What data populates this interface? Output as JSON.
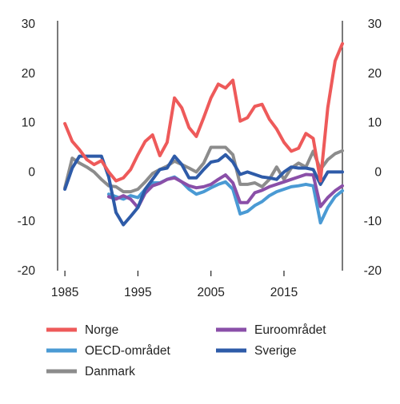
{
  "chart_data": {
    "type": "line",
    "title": "",
    "xlabel": "",
    "ylabel": "",
    "xlim": [
      1984,
      2023
    ],
    "ylim": [
      -20,
      30
    ],
    "y_ticks": [
      30,
      20,
      10,
      0,
      -10,
      -20
    ],
    "y_tick_labels": [
      "30",
      "20",
      "10",
      "0",
      "-10",
      "-20"
    ],
    "x_ticks": [
      1985,
      1995,
      2005,
      2015
    ],
    "x_tick_labels": [
      "1985",
      "1995",
      "2005",
      "2015"
    ],
    "secondary_y_axis": true,
    "grid": false,
    "legend_position": "bottom",
    "series": [
      {
        "name": "Norge",
        "color": "#ee5a5a",
        "x": [
          1985,
          1986,
          1987,
          1988,
          1989,
          1990,
          1991,
          1992,
          1993,
          1994,
          1995,
          1996,
          1997,
          1998,
          1999,
          2000,
          2001,
          2002,
          2003,
          2004,
          2005,
          2006,
          2007,
          2008,
          2009,
          2010,
          2011,
          2012,
          2013,
          2014,
          2015,
          2016,
          2017,
          2018,
          2019,
          2020,
          2021,
          2022,
          2023
        ],
        "y": [
          9.8,
          6.2,
          4.5,
          2.5,
          1.5,
          2.3,
          0,
          -1.8,
          -1.2,
          0.5,
          3.5,
          6.2,
          7.5,
          3.3,
          6,
          15,
          13,
          9,
          7.2,
          11,
          15,
          17.8,
          17,
          18.6,
          10.3,
          11,
          13.3,
          13.7,
          10.7,
          8.7,
          6,
          4.2,
          4.8,
          7.8,
          6.8,
          -1.8,
          13,
          22.5,
          26
        ]
      },
      {
        "name": "OECD-området",
        "color": "#4a9ad4",
        "x": [
          1991,
          1992,
          1993,
          1994,
          1995,
          1996,
          1997,
          1998,
          1999,
          2000,
          2001,
          2002,
          2003,
          2004,
          2005,
          2006,
          2007,
          2008,
          2009,
          2010,
          2011,
          2012,
          2013,
          2014,
          2015,
          2016,
          2017,
          2018,
          2019,
          2020,
          2021,
          2022,
          2023
        ],
        "y": [
          -4.5,
          -5,
          -5.5,
          -4.8,
          -5.2,
          -3.5,
          -2.2,
          -2.2,
          -1.5,
          -1,
          -2,
          -3.5,
          -4.5,
          -4,
          -3.2,
          -2.5,
          -2,
          -3.5,
          -8.5,
          -8,
          -6.8,
          -6,
          -4.8,
          -4,
          -3.5,
          -3,
          -2.8,
          -2.5,
          -2.8,
          -10.3,
          -7.2,
          -5,
          -3.8
        ]
      },
      {
        "name": "Danmark",
        "color": "#8c8c8c",
        "x": [
          1985,
          1986,
          1987,
          1988,
          1989,
          1990,
          1991,
          1992,
          1993,
          1994,
          1995,
          1996,
          1997,
          1998,
          1999,
          2000,
          2001,
          2002,
          2003,
          2004,
          2005,
          2006,
          2007,
          2008,
          2009,
          2010,
          2011,
          2012,
          2013,
          2014,
          2015,
          2016,
          2017,
          2018,
          2019,
          2020,
          2021,
          2022,
          2023
        ],
        "y": [
          -3.2,
          2.8,
          1.8,
          1,
          0,
          -1.5,
          -2.8,
          -3,
          -4,
          -4,
          -3.5,
          -2,
          -0.3,
          0.5,
          1.2,
          2.2,
          1.5,
          0.8,
          0,
          1.8,
          5,
          5,
          5,
          3.5,
          -2.5,
          -2.5,
          -2.2,
          -3,
          -1.5,
          1,
          -1.5,
          0.8,
          1.8,
          1,
          4.2,
          0.5,
          2.5,
          3.7,
          4.3
        ]
      },
      {
        "name": "Euroområdet",
        "color": "#8a4fa8",
        "x": [
          1991,
          1992,
          1993,
          1994,
          1995,
          1996,
          1997,
          1998,
          1999,
          2000,
          2001,
          2002,
          2003,
          2004,
          2005,
          2006,
          2007,
          2008,
          2009,
          2010,
          2011,
          2012,
          2013,
          2014,
          2015,
          2016,
          2017,
          2018,
          2019,
          2020,
          2021,
          2022,
          2023
        ],
        "y": [
          -5,
          -5.5,
          -4.8,
          -5.5,
          -7.2,
          -4.3,
          -2.8,
          -2.3,
          -1.5,
          -1.2,
          -2,
          -2.8,
          -3.2,
          -3,
          -2.5,
          -1.5,
          -0.6,
          -2.2,
          -6.2,
          -6.2,
          -4.2,
          -3.7,
          -3,
          -2.5,
          -2,
          -1.5,
          -1,
          -0.5,
          -0.6,
          -7,
          -5.2,
          -3.8,
          -2.8
        ]
      },
      {
        "name": "Sverige",
        "color": "#2e5ba8",
        "x": [
          1985,
          1986,
          1987,
          1988,
          1989,
          1990,
          1991,
          1992,
          1993,
          1994,
          1995,
          1996,
          1997,
          1998,
          1999,
          2000,
          2001,
          2002,
          2003,
          2004,
          2005,
          2006,
          2007,
          2008,
          2009,
          2010,
          2011,
          2012,
          2013,
          2014,
          2015,
          2016,
          2017,
          2018,
          2019,
          2020,
          2021,
          2022,
          2023
        ],
        "y": [
          -3.5,
          0.8,
          3.2,
          3.2,
          3.2,
          3.2,
          -1,
          -8.2,
          -10.7,
          -9,
          -7.2,
          -3.5,
          -1.5,
          0.5,
          0.8,
          3.2,
          1.5,
          -1.2,
          -1.2,
          0.5,
          2,
          2.3,
          3.5,
          2,
          -0.5,
          0,
          -0.5,
          -1,
          -1.2,
          -1.5,
          0,
          1,
          0.8,
          0.8,
          0.5,
          -2.5,
          0,
          0,
          0
        ]
      }
    ],
    "legend_order": [
      "Norge",
      "Euroområdet",
      "OECD-området",
      "Sverige",
      "Danmark"
    ]
  }
}
